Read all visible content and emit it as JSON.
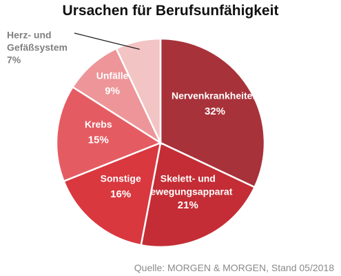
{
  "chart_data": {
    "type": "pie",
    "title": "Ursachen für Berufsunfähigkeit",
    "slices": [
      {
        "name": "Nervenkrankheiten",
        "label_lines": [
          "Nervenkrankheiten"
        ],
        "value": 32,
        "value_label": "32%",
        "color": "#a8323a"
      },
      {
        "name": "Skelett- und Bewegungsapparat",
        "label_lines": [
          "Skelett- und",
          "Bewegungsapparat"
        ],
        "value": 21,
        "value_label": "21%",
        "color": "#c42d35"
      },
      {
        "name": "Sonstige",
        "label_lines": [
          "Sonstige"
        ],
        "value": 16,
        "value_label": "16%",
        "color": "#d9383f"
      },
      {
        "name": "Krebs",
        "label_lines": [
          "Krebs"
        ],
        "value": 15,
        "value_label": "15%",
        "color": "#e45c62"
      },
      {
        "name": "Unfälle",
        "label_lines": [
          "Unfälle"
        ],
        "value": 9,
        "value_label": "9%",
        "color": "#ed9598"
      },
      {
        "name": "Herz- und Gefäßsystem",
        "label_lines": [
          "Herz- und",
          "Gefäßsystem"
        ],
        "value": 7,
        "value_label": "7%",
        "color": "#f2c4c4"
      }
    ]
  },
  "source": "Quelle: MORGEN & MORGEN, Stand 05/2018"
}
